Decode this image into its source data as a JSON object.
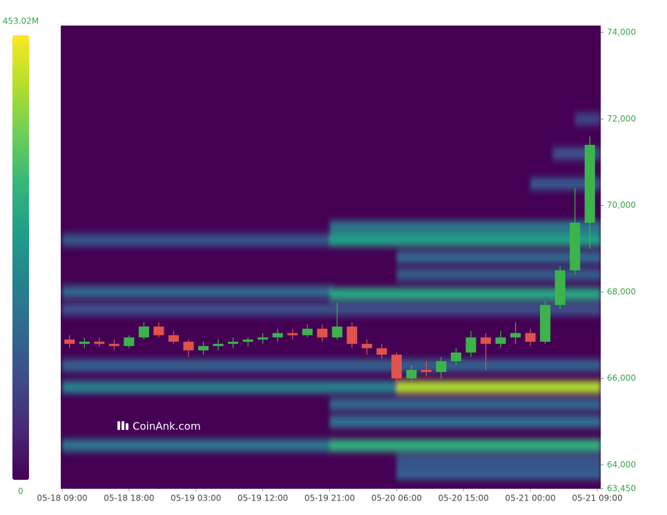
{
  "chart_data": {
    "type": "liquidation-heatmap",
    "watermark": "CoinAnk.com",
    "x": [
      "05-18 09:00",
      "05-18 11:00",
      "05-18 13:00",
      "05-18 15:00",
      "05-18 17:00",
      "05-18 19:00",
      "05-18 21:00",
      "05-18 23:00",
      "05-19 01:00",
      "05-19 03:00",
      "05-19 05:00",
      "05-19 07:00",
      "05-19 09:00",
      "05-19 11:00",
      "05-19 13:00",
      "05-19 15:00",
      "05-19 17:00",
      "05-19 19:00",
      "05-19 21:00",
      "05-19 23:00",
      "05-20 01:00",
      "05-20 03:00",
      "05-20 05:00",
      "05-20 07:00",
      "05-20 09:00",
      "05-20 11:00",
      "05-20 13:00",
      "05-20 15:00",
      "05-20 17:00",
      "05-20 19:00",
      "05-20 21:00",
      "05-20 23:00",
      "05-21 01:00",
      "05-21 03:00",
      "05-21 05:00",
      "05-21 07:00"
    ],
    "open": [
      66900,
      66800,
      66850,
      66800,
      66750,
      66950,
      67200,
      67000,
      66850,
      66650,
      66750,
      66800,
      66850,
      66900,
      66950,
      67050,
      67000,
      67150,
      66950,
      67200,
      66800,
      66700,
      66550,
      66000,
      66200,
      66150,
      66400,
      66600,
      66950,
      66800,
      66950,
      67050,
      66850,
      67700,
      68500,
      69600
    ],
    "high": [
      67000,
      66950,
      66950,
      66900,
      67000,
      67300,
      67300,
      67100,
      66900,
      66850,
      66900,
      66950,
      66950,
      67050,
      67150,
      67150,
      67250,
      67250,
      67750,
      67300,
      66900,
      66800,
      66600,
      66300,
      66400,
      66500,
      66700,
      67100,
      67050,
      67100,
      67300,
      67150,
      67800,
      68600,
      70400,
      71600
    ],
    "low": [
      66700,
      66700,
      66750,
      66650,
      66700,
      66900,
      66950,
      66800,
      66500,
      66550,
      66650,
      66700,
      66750,
      66800,
      66850,
      66900,
      66950,
      66850,
      66900,
      66700,
      66550,
      66450,
      65800,
      65900,
      66050,
      66000,
      66300,
      66500,
      66200,
      66700,
      66800,
      66750,
      66800,
      67600,
      68400,
      69000
    ],
    "close": [
      66800,
      66850,
      66800,
      66750,
      66950,
      67200,
      67000,
      66850,
      66650,
      66750,
      66800,
      66850,
      66900,
      66950,
      67050,
      67000,
      67150,
      66950,
      67200,
      66800,
      66700,
      66550,
      66000,
      66200,
      66150,
      66400,
      66600,
      66950,
      66800,
      66950,
      67050,
      66850,
      67700,
      68500,
      69600,
      71400
    ],
    "up_color": "#3cb44b",
    "down_color": "#e0524c",
    "bands": [
      {
        "price": 69200,
        "from": "05-18 09:00",
        "to": "05-19 21:00",
        "value": 120
      },
      {
        "price": 69200,
        "from": "05-19 21:00",
        "to": "05-21 09:00",
        "value": 260
      },
      {
        "price": 69500,
        "from": "05-19 21:00",
        "to": "05-21 09:00",
        "value": 180
      },
      {
        "price": 68000,
        "from": "05-18 09:00",
        "to": "05-19 21:00",
        "value": 150
      },
      {
        "price": 67950,
        "from": "05-19 21:00",
        "to": "05-21 09:00",
        "value": 270
      },
      {
        "price": 68800,
        "from": "05-20 06:00",
        "to": "05-21 09:00",
        "value": 150
      },
      {
        "price": 68400,
        "from": "05-20 06:00",
        "to": "05-21 09:00",
        "value": 130
      },
      {
        "price": 67600,
        "from": "05-18 09:00",
        "to": "05-21 09:00",
        "value": 110
      },
      {
        "price": 66300,
        "from": "05-18 09:00",
        "to": "05-21 09:00",
        "value": 140
      },
      {
        "price": 65800,
        "from": "05-18 09:00",
        "to": "05-20 06:00",
        "value": 200
      },
      {
        "price": 65800,
        "from": "05-20 06:00",
        "to": "05-21 09:00",
        "value": 400
      },
      {
        "price": 65400,
        "from": "05-19 21:00",
        "to": "05-21 09:00",
        "value": 150
      },
      {
        "price": 65000,
        "from": "05-19 21:00",
        "to": "05-21 09:00",
        "value": 170
      },
      {
        "price": 64450,
        "from": "05-18 09:00",
        "to": "05-19 21:00",
        "value": 180
      },
      {
        "price": 64450,
        "from": "05-19 21:00",
        "to": "05-21 09:00",
        "value": 290
      },
      {
        "price": 64100,
        "from": "05-20 06:00",
        "to": "05-21 09:00",
        "value": 120
      },
      {
        "price": 63800,
        "from": "05-20 06:00",
        "to": "05-21 09:00",
        "value": 140
      },
      {
        "price": 70500,
        "from": "05-21 00:00",
        "to": "05-21 09:00",
        "value": 120
      },
      {
        "price": 71200,
        "from": "05-21 03:00",
        "to": "05-21 09:00",
        "value": 110
      },
      {
        "price": 72000,
        "from": "05-21 06:00",
        "to": "05-21 09:00",
        "value": 90
      }
    ],
    "clim": [
      0,
      453.02
    ],
    "cticks": [
      0,
      {
        "value": 453.02,
        "label": "453.02M"
      }
    ],
    "xlim": [
      "05-18 09:00",
      "05-21 09:00"
    ],
    "xticks": [
      "05-18 09:00",
      "05-18 18:00",
      "05-19 03:00",
      "05-19 12:00",
      "05-19 21:00",
      "05-20 06:00",
      "05-20 15:00",
      "05-21 00:00",
      "05-21 09:00"
    ],
    "ylim": [
      63450,
      74160
    ],
    "yticks": [
      {
        "value": 63450,
        "label": "63,450"
      },
      {
        "value": 64000,
        "label": "64,000"
      },
      {
        "value": 66000,
        "label": "66,000"
      },
      {
        "value": 68000,
        "label": "68,000"
      },
      {
        "value": 70000,
        "label": "70,000"
      },
      {
        "value": 72000,
        "label": "72,000"
      },
      {
        "value": 74000,
        "label": "74,000"
      }
    ]
  }
}
